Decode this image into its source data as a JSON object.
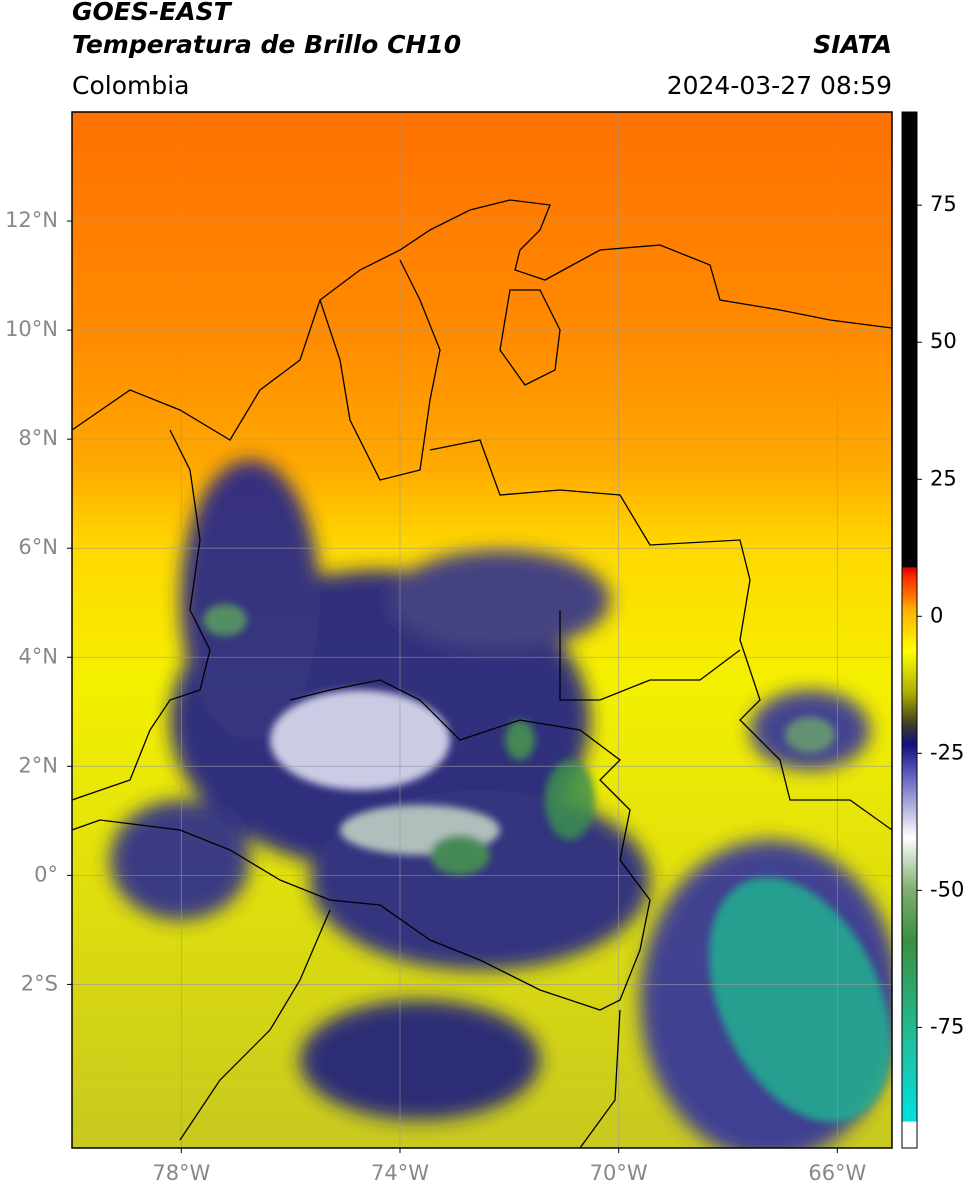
{
  "chart_data": {
    "type": "map",
    "title": "GOES-EAST",
    "subtitle": "Temperatura de Brillo CH10",
    "source": "SIATA",
    "region": "Colombia",
    "datetime": "2024-03-27 08:59",
    "xlim": [
      -80,
      -65
    ],
    "ylim": [
      -5,
      14
    ],
    "xticks": [
      {
        "value": -78,
        "label": "78°W"
      },
      {
        "value": -74,
        "label": "74°W"
      },
      {
        "value": -70,
        "label": "70°W"
      },
      {
        "value": -66,
        "label": "66°W"
      }
    ],
    "yticks": [
      {
        "value": 12,
        "label": "12°N"
      },
      {
        "value": 10,
        "label": "10°N"
      },
      {
        "value": 8,
        "label": "8°N"
      },
      {
        "value": 6,
        "label": "6°N"
      },
      {
        "value": 4,
        "label": "4°N"
      },
      {
        "value": 2,
        "label": "2°N"
      },
      {
        "value": 0,
        "label": "0°"
      },
      {
        "value": -2,
        "label": "2°S"
      }
    ],
    "grid": true,
    "colorbar_lim": [
      -97,
      92
    ],
    "colorbar_ticks": [
      75,
      50,
      25,
      0,
      -25,
      -50,
      -75
    ]
  }
}
